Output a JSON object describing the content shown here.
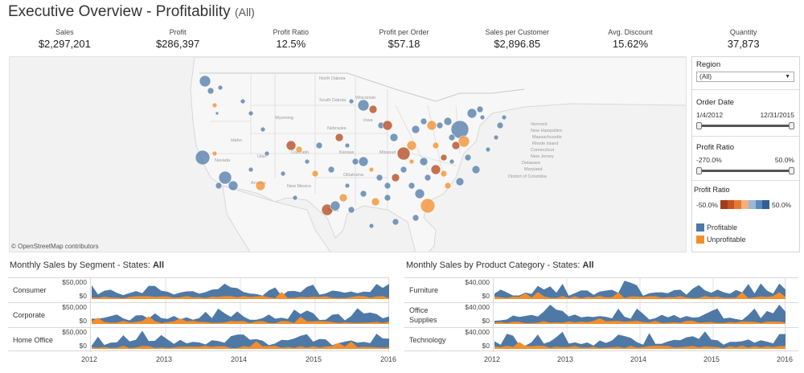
{
  "header": {
    "title": "Executive Overview - Profitability",
    "subtitle": "(All)"
  },
  "kpis": [
    {
      "label": "Sales",
      "value": "$2,297,201"
    },
    {
      "label": "Profit",
      "value": "$286,397"
    },
    {
      "label": "Profit Ratio",
      "value": "12.5%"
    },
    {
      "label": "Profit per Order",
      "value": "$57.18"
    },
    {
      "label": "Sales per Customer",
      "value": "$2,896.85"
    },
    {
      "label": "Avg. Discount",
      "value": "15.62%"
    },
    {
      "label": "Quantity",
      "value": "37,873"
    }
  ],
  "map": {
    "credit": "© OpenStreetMap contributors",
    "state_labels": [
      "North Dakota",
      "Wisconsin",
      "South Dakota",
      "Wyoming",
      "Nebraska",
      "Iowa",
      "Idaho",
      "Nevada",
      "Utah",
      "Colorado",
      "Kansas",
      "Missouri",
      "Oklahoma",
      "Arizona",
      "New Mexico",
      "Texas",
      "Vermont",
      "New Hampshire",
      "Massachusetts",
      "Rhode Island",
      "Connecticut",
      "New Jersey",
      "Delaware",
      "Maryland",
      "District of Columbia"
    ],
    "colors": {
      "profitable": "#4e79a7",
      "unprofitable": "#f28e2b",
      "loss_dark": "#b3441b"
    }
  },
  "filters": {
    "region": {
      "title": "Region",
      "value": "(All)"
    },
    "order_date": {
      "title": "Order Date",
      "start": "1/4/2012",
      "end": "12/31/2015"
    },
    "profit_ratio_filter": {
      "title": "Profit Ratio",
      "min": "-270.0%",
      "max": "50.0%"
    },
    "profit_ratio_legend": {
      "title": "Profit Ratio",
      "min": "-50.0%",
      "max": "50.0%"
    },
    "legend": [
      {
        "label": "Profitable",
        "color": "#4e79a7"
      },
      {
        "label": "Unprofitable",
        "color": "#f28e2b"
      }
    ]
  },
  "segment_chart": {
    "title_prefix": "Monthly Sales by Segment - States:",
    "title_value": "All",
    "rows": [
      {
        "label": "Consumer",
        "top_tick": "$50,000",
        "zero_tick": "$0"
      },
      {
        "label": "Corporate",
        "top_tick": "$50,000",
        "zero_tick": "$0"
      },
      {
        "label": "Home Office",
        "top_tick": "$50,000",
        "zero_tick": "$0"
      }
    ],
    "x_labels": [
      "2012",
      "2013",
      "2014",
      "2015",
      "2016"
    ]
  },
  "category_chart": {
    "title_prefix": "Monthly Sales by Product Category - States:",
    "title_value": "All",
    "rows": [
      {
        "label": "Furniture",
        "top_tick": "$40,000",
        "zero_tick": "$0"
      },
      {
        "label": "Office Supplies",
        "top_tick": "$40,000",
        "zero_tick": "$0"
      },
      {
        "label": "Technology",
        "top_tick": "$40,000",
        "zero_tick": "$0"
      }
    ],
    "x_labels": [
      "2012",
      "2013",
      "2014",
      "2015",
      "2016"
    ]
  }
}
